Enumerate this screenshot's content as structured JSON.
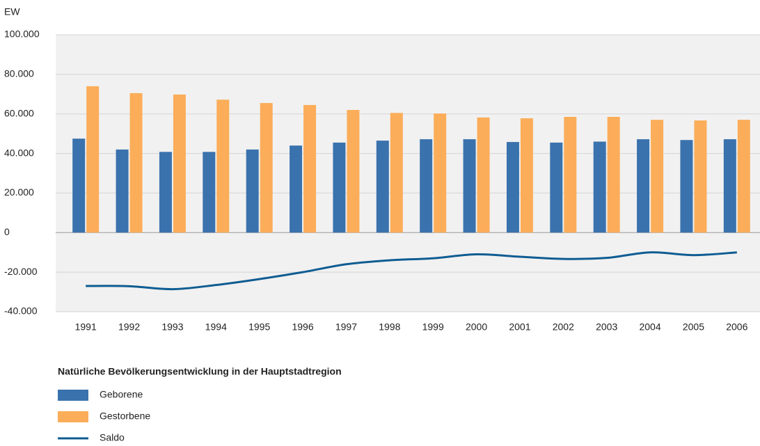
{
  "chart_data": {
    "type": "bar_line",
    "y_axis_label": "EW",
    "categories": [
      "1991",
      "1992",
      "1993",
      "1994",
      "1995",
      "1996",
      "1997",
      "1998",
      "1999",
      "2000",
      "2001",
      "2002",
      "2003",
      "2004",
      "2005",
      "2006"
    ],
    "series": [
      {
        "name": "Geborene",
        "type": "bar",
        "color": "#3a72ad",
        "values": [
          47500,
          42000,
          40800,
          40800,
          42000,
          44000,
          45500,
          46500,
          47200,
          47200,
          45800,
          45500,
          46000,
          47200,
          46800,
          47200
        ]
      },
      {
        "name": "Gestorbene",
        "type": "bar",
        "color": "#fbad59",
        "values": [
          74000,
          70500,
          69800,
          67200,
          65500,
          64500,
          62000,
          60500,
          60200,
          58200,
          57800,
          58500,
          58500,
          57000,
          56700,
          57000
        ]
      },
      {
        "name": "Saldo",
        "type": "line",
        "color": "#0e5c92",
        "values": [
          -27000,
          -27100,
          -28600,
          -26500,
          -23500,
          -20000,
          -16000,
          -14000,
          -13000,
          -11000,
          -12200,
          -13300,
          -12800,
          -10000,
          -11400,
          -10000
        ]
      }
    ],
    "ylim": [
      -40000,
      100000
    ],
    "yticks": [
      {
        "value": -40000,
        "label": "-40.000"
      },
      {
        "value": -20000,
        "label": "-20.000"
      },
      0,
      {
        "value": 20000,
        "label": "20.000"
      },
      {
        "value": 40000,
        "label": "40.000"
      },
      {
        "value": 60000,
        "label": "60.000"
      },
      {
        "value": 80000,
        "label": "80.000"
      },
      {
        "value": 100000,
        "label": "100.000"
      }
    ],
    "grid": true,
    "legend_title": "Natürliche Bevölkerungsentwicklung in der Hauptstadtregion",
    "legend": "bottom-left"
  }
}
